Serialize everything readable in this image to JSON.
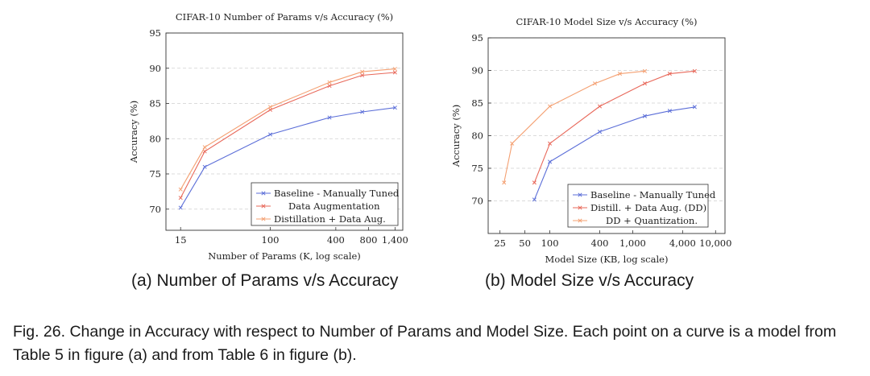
{
  "chart_data": [
    {
      "type": "line",
      "title": "CIFAR-10 Number of Params v/s Accuracy (%)",
      "xlabel": "Number of Params (K, log scale)",
      "ylabel": "Accuracy (%)",
      "xscale": "log",
      "xlim": [
        11,
        1650
      ],
      "ylim": [
        67,
        95
      ],
      "xticks": [
        15,
        100,
        400,
        800,
        1400
      ],
      "xtick_labels": [
        "15",
        "100",
        "400",
        "800",
        "1,400"
      ],
      "yticks": [
        70,
        75,
        80,
        85,
        90,
        95
      ],
      "grid": "y-dashed",
      "legend_position": "bottom-right",
      "series": [
        {
          "name": "Baseline - Manually Tuned",
          "color": "#5b6ed8",
          "x": [
            15,
            25,
            100,
            350,
            700,
            1400
          ],
          "y": [
            70.2,
            76.0,
            80.6,
            83.0,
            83.8,
            84.4
          ]
        },
        {
          "name": "Data Augmentation",
          "color": "#e8685a",
          "x": [
            15,
            25,
            100,
            350,
            700,
            1400
          ],
          "y": [
            71.6,
            78.2,
            84.1,
            87.5,
            89.0,
            89.4
          ]
        },
        {
          "name": "Distillation + Data Aug.",
          "color": "#f4a072",
          "x": [
            15,
            25,
            100,
            350,
            700,
            1400
          ],
          "y": [
            72.8,
            78.8,
            84.5,
            88.0,
            89.5,
            89.9
          ]
        }
      ]
    },
    {
      "type": "line",
      "title": "CIFAR-10 Model Size v/s Accuracy (%)",
      "xlabel": "Model Size (KB, log scale)",
      "ylabel": "Accuracy (%)",
      "xscale": "log",
      "xlim": [
        18,
        13000
      ],
      "ylim": [
        65,
        95
      ],
      "xticks": [
        25,
        50,
        100,
        400,
        1000,
        4000,
        10000
      ],
      "xtick_labels": [
        "25",
        "50",
        "100",
        "400",
        "1,000",
        "4,000",
        "10,000"
      ],
      "yticks": [
        70,
        75,
        80,
        85,
        90,
        95
      ],
      "grid": "y-dashed",
      "legend_position": "bottom-right",
      "series": [
        {
          "name": "Baseline - Manually Tuned",
          "color": "#5b6ed8",
          "x": [
            65,
            100,
            400,
            1400,
            2800,
            5600
          ],
          "y": [
            70.2,
            76.0,
            80.6,
            83.0,
            83.8,
            84.4
          ]
        },
        {
          "name": "Distill. + Data Aug. (DD)",
          "color": "#e8685a",
          "x": [
            65,
            100,
            400,
            1400,
            2800,
            5600
          ],
          "y": [
            72.8,
            78.8,
            84.5,
            88.0,
            89.5,
            89.9
          ]
        },
        {
          "name": "DD + Quantization.",
          "color": "#f4a072",
          "x": [
            28,
            35,
            100,
            350,
            700,
            1400
          ],
          "y": [
            72.8,
            78.8,
            84.5,
            88.0,
            89.5,
            89.9
          ]
        }
      ]
    }
  ],
  "subcaptions": {
    "a": "(a) Number of Params v/s Accuracy",
    "b": "(b) Model Size v/s Accuracy"
  },
  "figure_caption": "Fig. 26.  Change in Accuracy with respect to Number of Params and Model Size. Each point on a curve is a model from Table 5 in figure (a) and from Table 6 in figure (b)."
}
